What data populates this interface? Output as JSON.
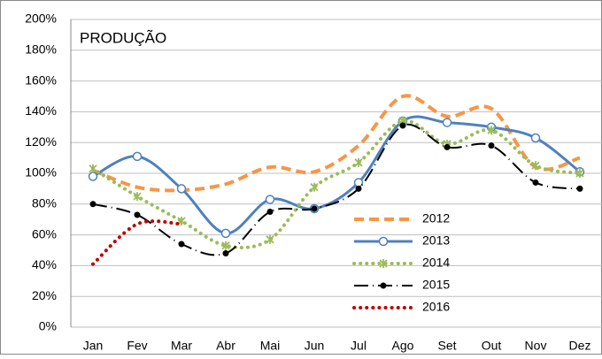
{
  "chart_data": {
    "type": "line",
    "title": "PRODUÇÃO",
    "categories": [
      "Jan",
      "Fev",
      "Mar",
      "Abr",
      "Mai",
      "Jun",
      "Jul",
      "Ago",
      "Set",
      "Out",
      "Nov",
      "Dez"
    ],
    "ylim": [
      0,
      200
    ],
    "yticks": [
      {
        "value": 0,
        "label": "0%"
      },
      {
        "value": 20,
        "label": "20%"
      },
      {
        "value": 40,
        "label": "40%"
      },
      {
        "value": 60,
        "label": "60%"
      },
      {
        "value": 80,
        "label": "80%"
      },
      {
        "value": 100,
        "label": "100%"
      },
      {
        "value": 120,
        "label": "120%"
      },
      {
        "value": 140,
        "label": "140%"
      },
      {
        "value": 160,
        "label": "160%"
      },
      {
        "value": 180,
        "label": "180%"
      },
      {
        "value": 200,
        "label": "200%"
      }
    ],
    "grid": true,
    "legend": "bottom-center",
    "smooth": true,
    "series": [
      {
        "name": "2012",
        "color": "#f79646",
        "line_style": "dashed",
        "marker": "none",
        "values": [
          102,
          91,
          89,
          93,
          104,
          101,
          118,
          150,
          137,
          142,
          104,
          110
        ]
      },
      {
        "name": "2013",
        "color": "#4f81bd",
        "line_style": "solid",
        "marker": "circle",
        "values": [
          98,
          111,
          90,
          61,
          83,
          77,
          94,
          134,
          133,
          130,
          123,
          101
        ]
      },
      {
        "name": "2014",
        "color": "#9bbb59",
        "line_style": "dotted",
        "marker": "star",
        "values": [
          103,
          85,
          69,
          53,
          57,
          91,
          107,
          134,
          119,
          128,
          105,
          100
        ]
      },
      {
        "name": "2015",
        "color": "#000000",
        "line_style": "dashdot",
        "marker": "dot",
        "values": [
          80,
          73,
          54,
          48,
          75,
          77,
          90,
          131,
          117,
          118,
          94,
          90
        ]
      },
      {
        "name": "2016",
        "color": "#c00000",
        "line_style": "dotted",
        "marker": "none",
        "values": [
          41,
          67,
          67,
          null,
          null,
          null,
          null,
          null,
          null,
          null,
          null,
          null
        ]
      }
    ]
  }
}
